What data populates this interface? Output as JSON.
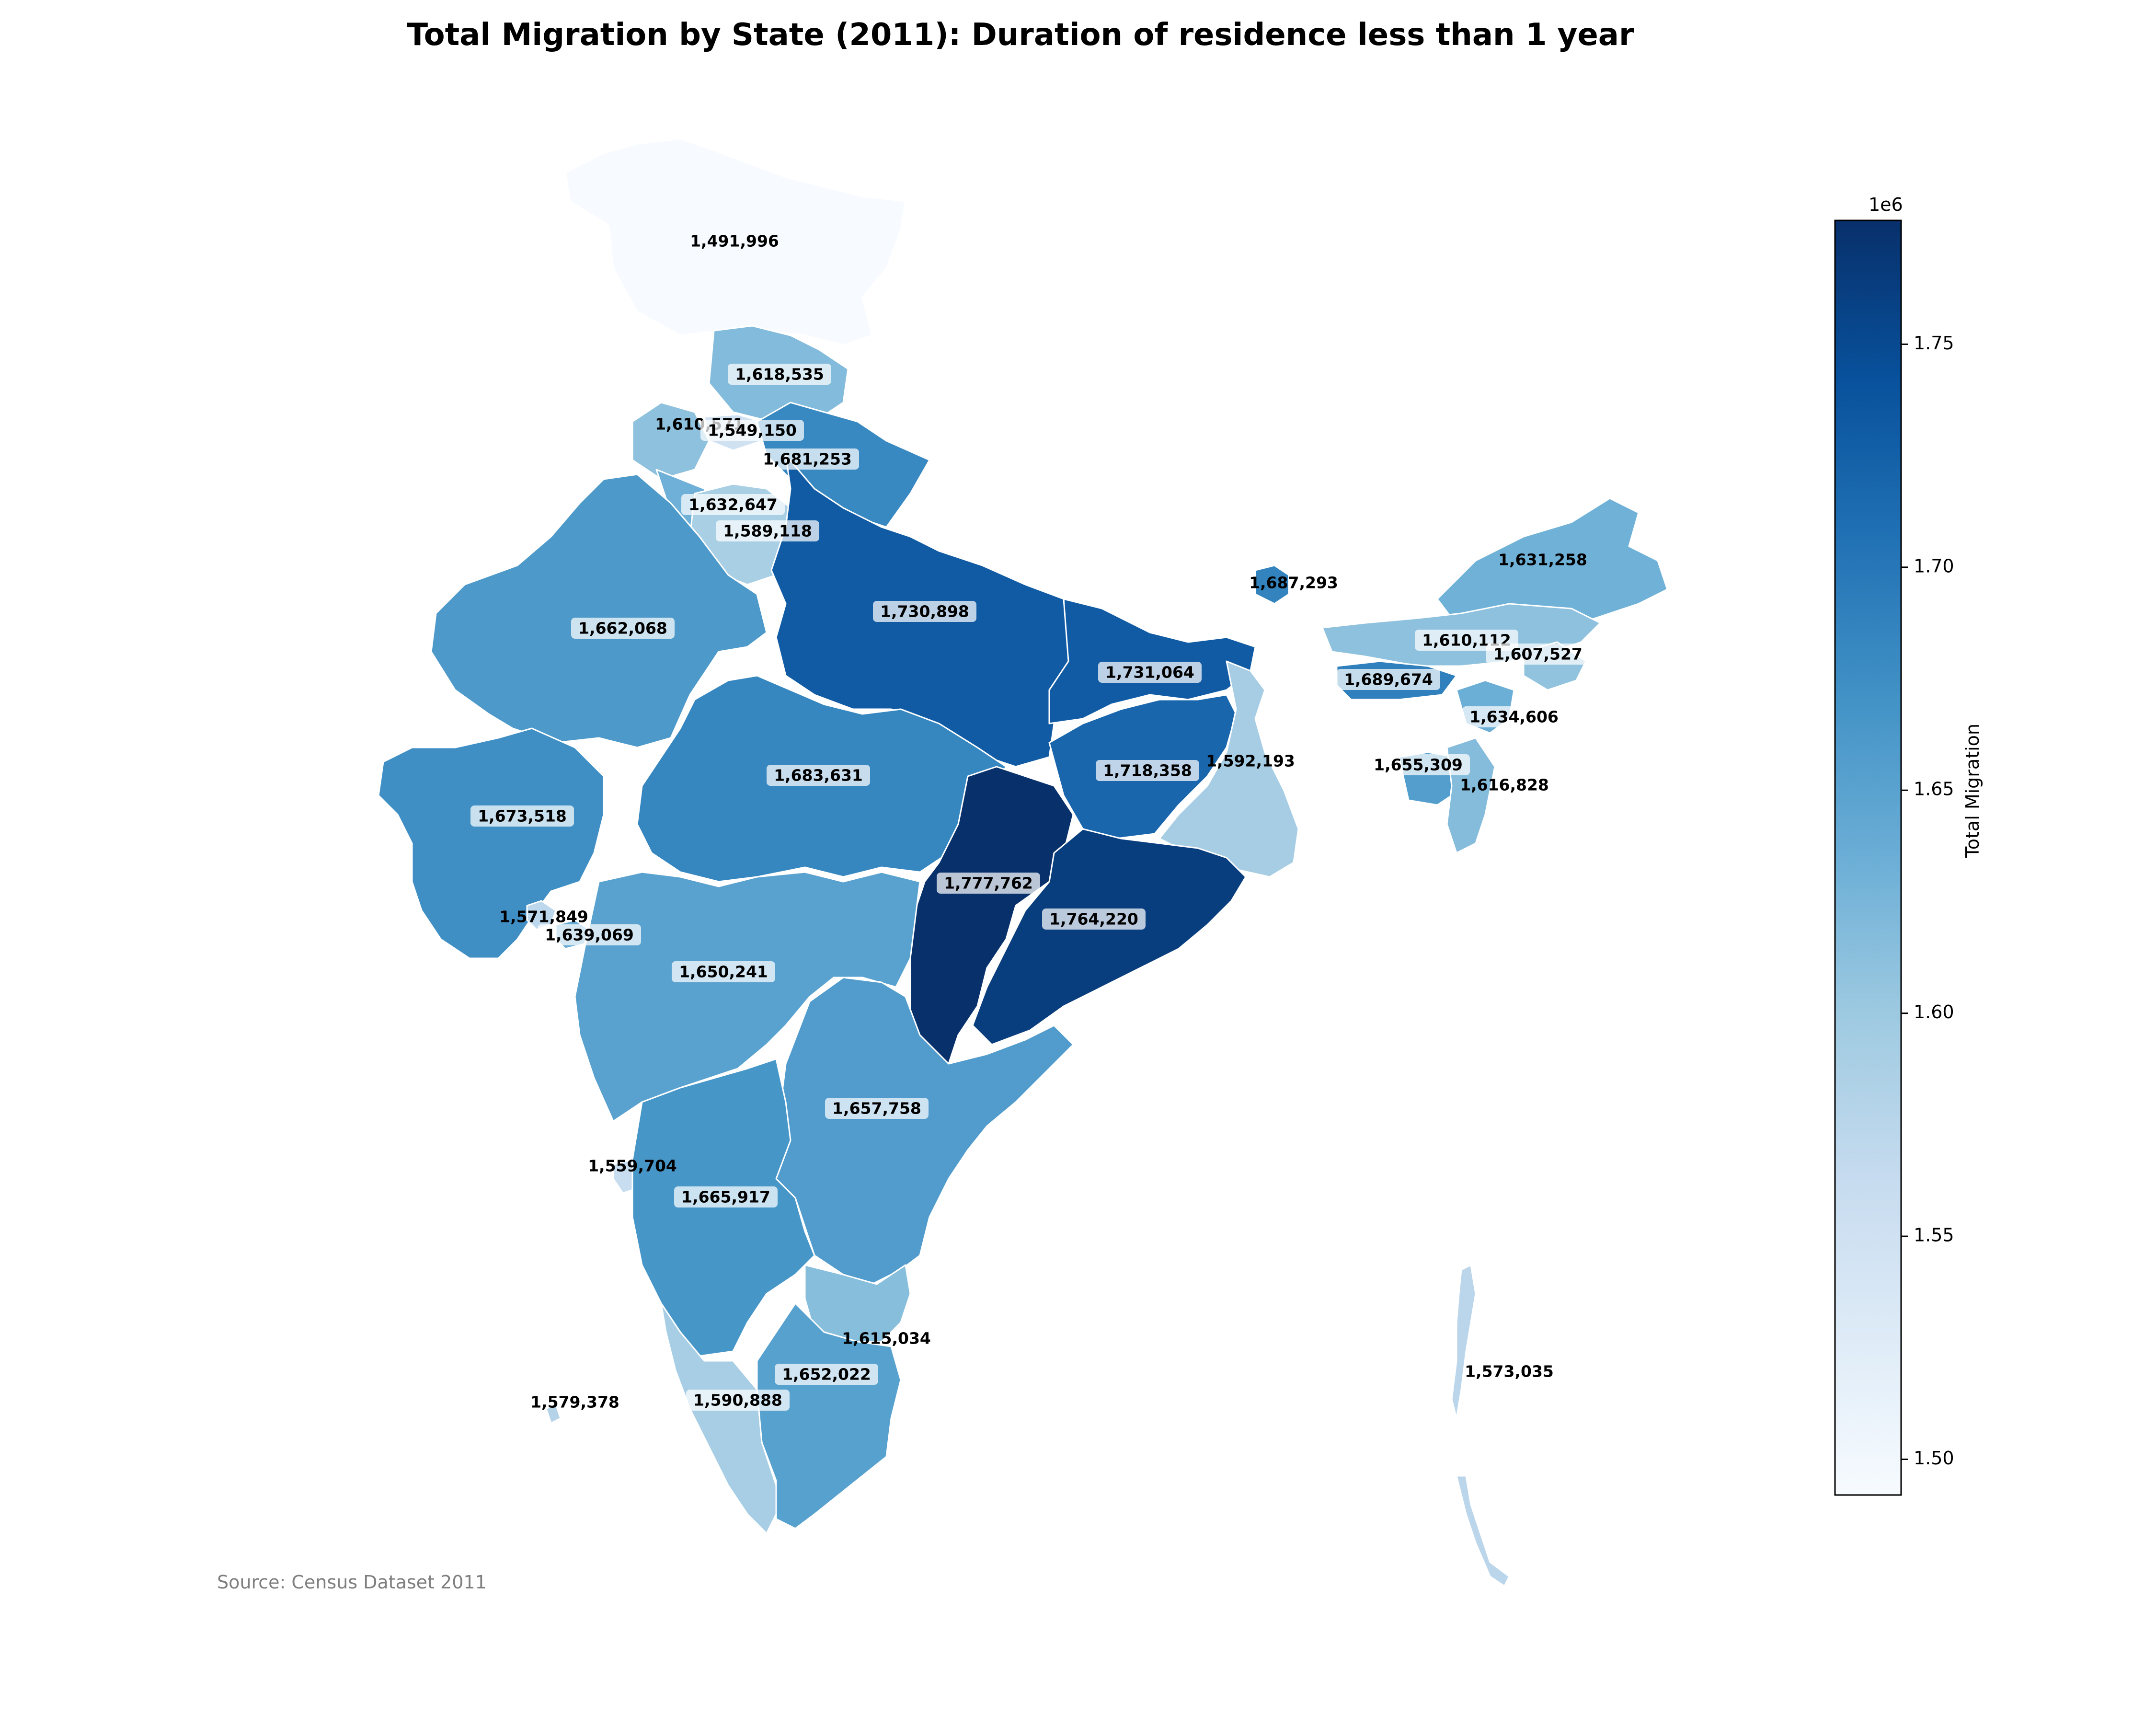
{
  "title": "Total Migration by State (2011): Duration of residence less than 1 year",
  "source": "Source: Census Dataset 2011",
  "colorbar": {
    "label": "Total Migration",
    "multiplier": "1e6",
    "min": 1491996,
    "max": 1777762,
    "ticks": [
      "1.50",
      "1.55",
      "1.60",
      "1.65",
      "1.70",
      "1.75"
    ],
    "tick_values": [
      1.5,
      1.55,
      1.6,
      1.65,
      1.7,
      1.75
    ],
    "colormap": "Blues",
    "color_low": "#f7fbff",
    "color_high": "#08306b"
  },
  "chart_data": {
    "type": "choropleth",
    "values": [
      {
        "label": "1,491,996",
        "value": 1491996
      },
      {
        "label": "1,618,535",
        "value": 1618535
      },
      {
        "label": "1,610,571",
        "value": 1610571
      },
      {
        "label": "1,549,150",
        "value": 1549150
      },
      {
        "label": "1,681,253",
        "value": 1681253
      },
      {
        "label": "1,632,647",
        "value": 1632647
      },
      {
        "label": "1,589,118",
        "value": 1589118
      },
      {
        "label": "1,662,068",
        "value": 1662068
      },
      {
        "label": "1,730,898",
        "value": 1730898
      },
      {
        "label": "1,687,293",
        "value": 1687293
      },
      {
        "label": "1,631,258",
        "value": 1631258
      },
      {
        "label": "1,610,112",
        "value": 1610112
      },
      {
        "label": "1,607,527",
        "value": 1607527
      },
      {
        "label": "1,731,064",
        "value": 1731064
      },
      {
        "label": "1,689,674",
        "value": 1689674
      },
      {
        "label": "1,634,606",
        "value": 1634606
      },
      {
        "label": "1,683,631",
        "value": 1683631
      },
      {
        "label": "1,718,358",
        "value": 1718358
      },
      {
        "label": "1,592,193",
        "value": 1592193
      },
      {
        "label": "1,655,309",
        "value": 1655309
      },
      {
        "label": "1,616,828",
        "value": 1616828
      },
      {
        "label": "1,673,518",
        "value": 1673518
      },
      {
        "label": "1,777,762",
        "value": 1777762
      },
      {
        "label": "1,764,220",
        "value": 1764220
      },
      {
        "label": "1,571,849",
        "value": 1571849
      },
      {
        "label": "1,639,069",
        "value": 1639069
      },
      {
        "label": "1,650,241",
        "value": 1650241
      },
      {
        "label": "1,657,758",
        "value": 1657758
      },
      {
        "label": "1,559,704",
        "value": 1559704
      },
      {
        "label": "1,665,917",
        "value": 1665917
      },
      {
        "label": "1,615,034",
        "value": 1615034
      },
      {
        "label": "1,652,022",
        "value": 1652022
      },
      {
        "label": "1,579,378",
        "value": 1579378
      },
      {
        "label": "1,590,888",
        "value": 1590888
      },
      {
        "label": "1,573,035",
        "value": 1573035
      }
    ]
  }
}
